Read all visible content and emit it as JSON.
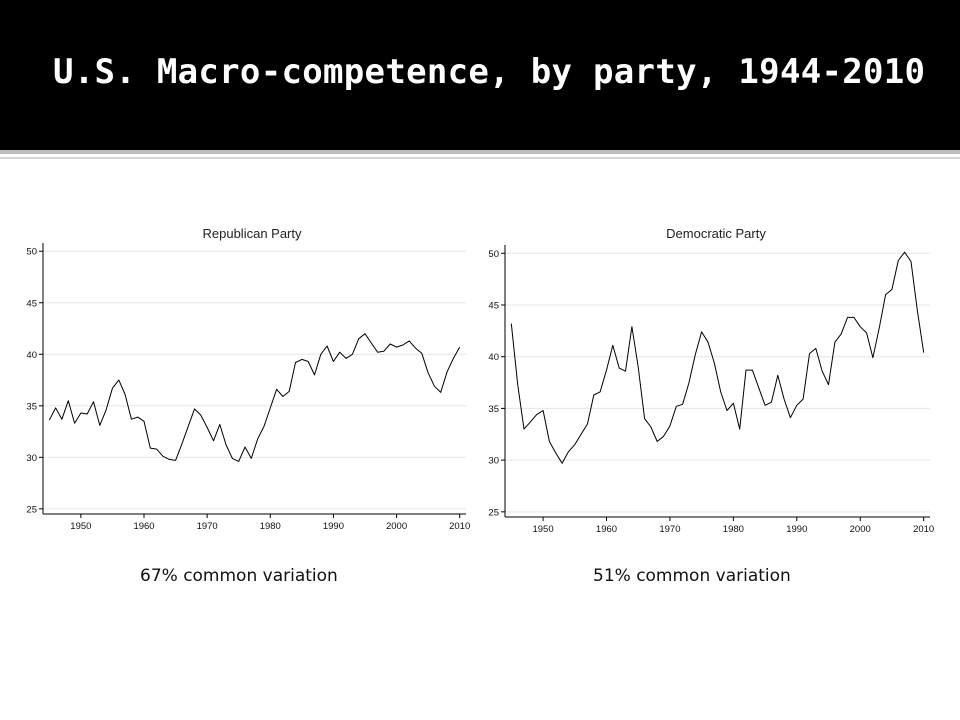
{
  "slide": {
    "title": "U.S. Macro-competence, by party, 1944-2010"
  },
  "captions": [
    "67% common variation",
    "51% common variation"
  ],
  "chart_data": [
    {
      "type": "line",
      "title": "Republican Party",
      "xlabel": "",
      "ylabel": "",
      "xlim": [
        1944,
        2011
      ],
      "ylim": [
        24.5,
        50.8
      ],
      "xticks": [
        1950,
        1960,
        1970,
        1980,
        1990,
        2000,
        2010
      ],
      "yticks": [
        25,
        30,
        35,
        40,
        45,
        50
      ],
      "grid": "horizontal",
      "line_color": "#000000",
      "series": [
        {
          "x": [
            1945,
            1946,
            1947,
            1948,
            1949,
            1950,
            1951,
            1952,
            1953,
            1954,
            1955,
            1956,
            1957,
            1958,
            1959,
            1960,
            1961,
            1962,
            1963,
            1964,
            1965,
            1966,
            1967,
            1968,
            1969,
            1970,
            1971,
            1972,
            1973,
            1974,
            1975,
            1976,
            1977,
            1978,
            1979,
            1980,
            1981,
            1982,
            1983,
            1984,
            1985,
            1986,
            1987,
            1988,
            1989,
            1990,
            1991,
            1992,
            1993,
            1994,
            1995,
            1996,
            1997,
            1998,
            1999,
            2000,
            2001,
            2002,
            2003,
            2004,
            2005,
            2006,
            2007,
            2008,
            2009,
            2010
          ],
          "y": [
            33.6,
            34.8,
            33.7,
            35.5,
            33.3,
            34.3,
            34.2,
            35.4,
            33.1,
            34.6,
            36.7,
            37.5,
            36.1,
            33.7,
            33.9,
            33.5,
            30.9,
            30.8,
            30.1,
            29.8,
            29.7,
            31.3,
            33.0,
            34.7,
            34.1,
            32.9,
            31.6,
            33.2,
            31.2,
            29.9,
            29.6,
            31.0,
            29.9,
            31.8,
            33.0,
            34.8,
            36.6,
            35.9,
            36.4,
            39.2,
            39.5,
            39.3,
            38.0,
            40.0,
            40.8,
            39.3,
            40.2,
            39.6,
            40.0,
            41.5,
            42.0,
            41.1,
            40.2,
            40.3,
            41.0,
            40.7,
            40.9,
            41.3,
            40.6,
            40.1,
            38.2,
            36.9,
            36.3,
            38.3,
            39.6,
            40.7
          ]
        }
      ]
    },
    {
      "type": "line",
      "title": "Democratic Party",
      "xlabel": "",
      "ylabel": "",
      "xlim": [
        1944,
        2011
      ],
      "ylim": [
        24.5,
        50.8
      ],
      "xticks": [
        1950,
        1960,
        1970,
        1980,
        1990,
        2000,
        2010
      ],
      "yticks": [
        25,
        30,
        35,
        40,
        45,
        50
      ],
      "grid": "horizontal",
      "line_color": "#000000",
      "series": [
        {
          "x": [
            1945,
            1946,
            1947,
            1948,
            1949,
            1950,
            1951,
            1952,
            1953,
            1954,
            1955,
            1956,
            1957,
            1958,
            1959,
            1960,
            1961,
            1962,
            1963,
            1964,
            1965,
            1966,
            1967,
            1968,
            1969,
            1970,
            1971,
            1972,
            1973,
            1974,
            1975,
            1976,
            1977,
            1978,
            1979,
            1980,
            1981,
            1982,
            1983,
            1984,
            1985,
            1986,
            1987,
            1988,
            1989,
            1990,
            1991,
            1992,
            1993,
            1994,
            1995,
            1996,
            1997,
            1998,
            1999,
            2000,
            2001,
            2002,
            2003,
            2004,
            2005,
            2006,
            2007,
            2008,
            2009,
            2010
          ],
          "y": [
            43.2,
            37.3,
            33.0,
            33.7,
            34.4,
            34.8,
            31.8,
            30.7,
            29.7,
            30.8,
            31.5,
            32.5,
            33.5,
            36.3,
            36.6,
            38.7,
            41.1,
            38.9,
            38.6,
            42.9,
            39.0,
            34.0,
            33.2,
            31.8,
            32.3,
            33.3,
            35.2,
            35.4,
            37.5,
            40.2,
            42.4,
            41.4,
            39.4,
            36.6,
            34.8,
            35.5,
            33.0,
            38.7,
            38.7,
            37.0,
            35.3,
            35.6,
            38.2,
            35.9,
            34.1,
            35.3,
            35.9,
            40.3,
            40.8,
            38.6,
            37.3,
            41.4,
            42.2,
            43.8,
            43.8,
            42.9,
            42.3,
            39.9,
            42.8,
            46.0,
            46.5,
            49.3,
            50.1,
            49.2,
            44.5,
            40.4
          ]
        }
      ]
    }
  ]
}
